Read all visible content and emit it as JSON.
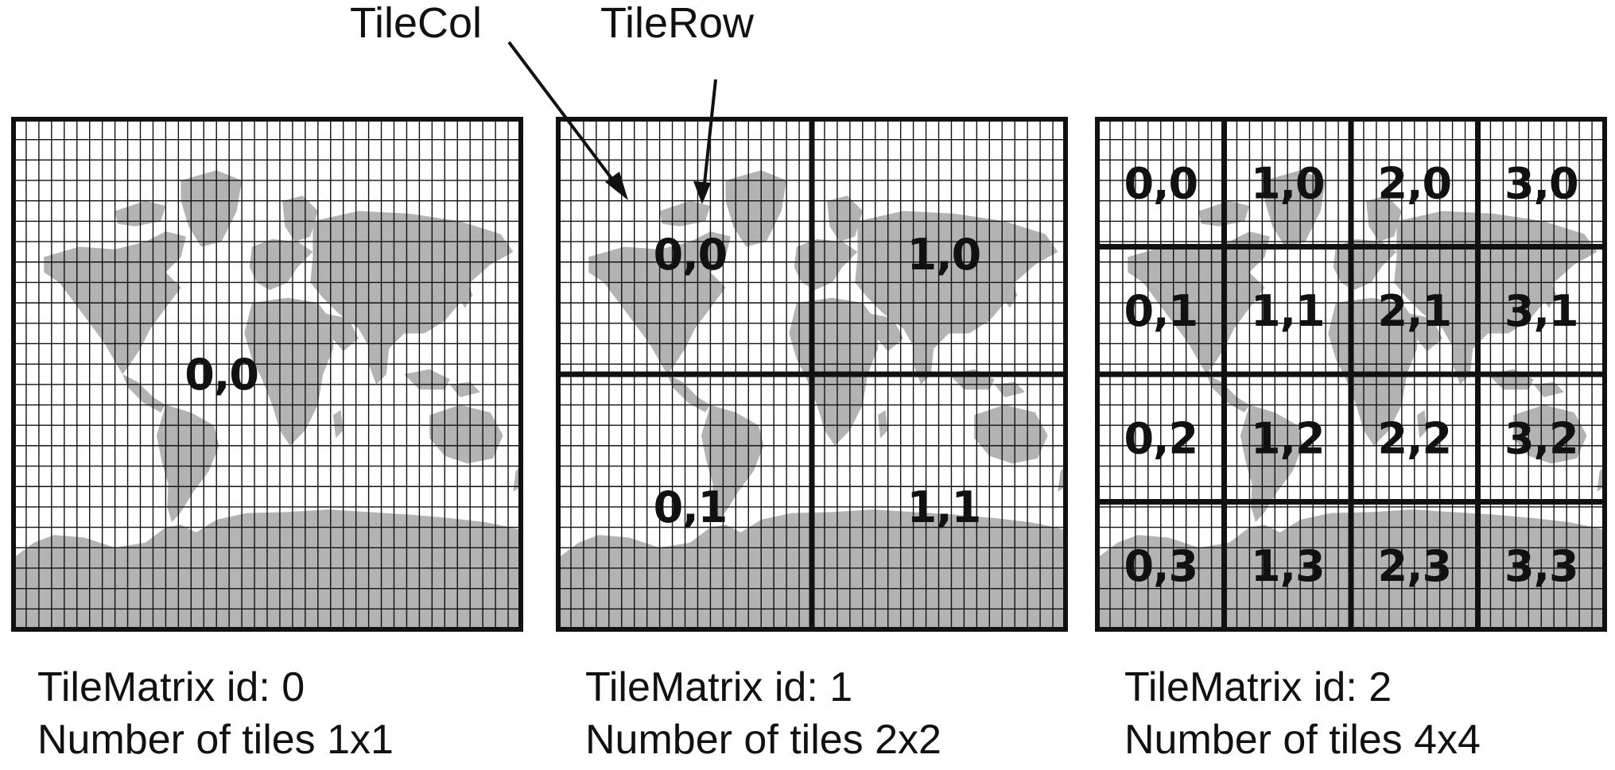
{
  "colors": {
    "land": "#b3b3b3",
    "grid": "#111111",
    "text": "#111111",
    "background": "#ffffff"
  },
  "pointers": {
    "tile_col": "TileCol",
    "tile_row": "TileRow"
  },
  "matrices": [
    {
      "caption_id": "TileMatrix id: 0",
      "caption_count": "Number of tiles 1x1",
      "tiles_per_side": 1,
      "tiles": [
        "0,0"
      ]
    },
    {
      "caption_id": "TileMatrix id: 1",
      "caption_count": "Number of tiles 2x2",
      "tiles_per_side": 2,
      "tiles": [
        "0,0",
        "1,0",
        "0,1",
        "1,1"
      ]
    },
    {
      "caption_id": "TileMatrix id: 2",
      "caption_count": "Number of tiles 4x4",
      "tiles_per_side": 4,
      "tiles": [
        "0,0",
        "1,0",
        "2,0",
        "3,0",
        "0,1",
        "1,1",
        "2,1",
        "3,1",
        "0,2",
        "1,2",
        "2,2",
        "3,2",
        "0,3",
        "1,3",
        "2,3",
        "3,3"
      ]
    }
  ]
}
